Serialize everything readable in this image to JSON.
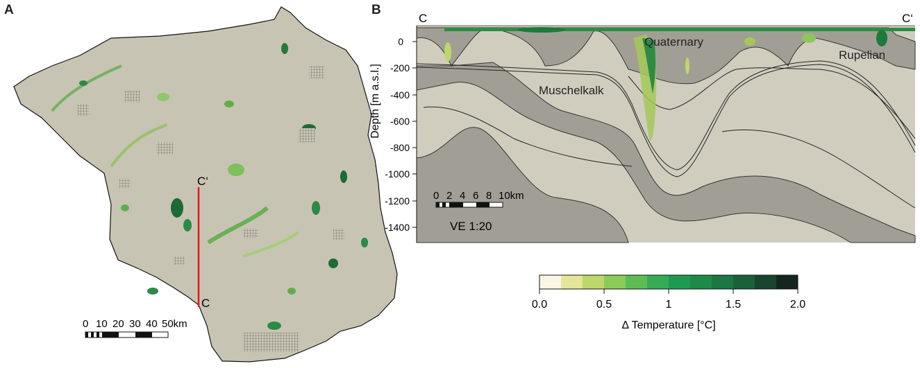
{
  "panel_a": {
    "label": "A",
    "section_start": "C",
    "section_end": "C‘",
    "scale_ticks": [
      "0",
      "10",
      "20",
      "30",
      "40",
      "50km"
    ]
  },
  "panel_b": {
    "label": "B",
    "left_end": "C",
    "right_end": "C‘",
    "ylabel": "Depth [m a.s.l.]",
    "yticks": [
      "0",
      "-200",
      "-400",
      "-600",
      "-800",
      "-1000",
      "-1200",
      "-1400"
    ],
    "units": {
      "quaternary": "Quaternary",
      "rupelian": "Rupelian",
      "muschelkalk": "Muschelkalk"
    },
    "scale_ticks": [
      "0",
      "2",
      "4",
      "6",
      "8",
      "10km"
    ],
    "vertical_exaggeration": "VE 1:20"
  },
  "colorbar": {
    "title": "Δ Temperature [°C]",
    "ticks": [
      "0.0",
      "0.5",
      "1",
      "1.5",
      "2.0"
    ],
    "colors": [
      "#fbf6e4",
      "#e4e79a",
      "#bcd86a",
      "#8ccb56",
      "#5dbd55",
      "#35ab56",
      "#1f9a52",
      "#1e8a4a",
      "#1c7742",
      "#1a6139",
      "#17452d",
      "#142620"
    ]
  }
}
